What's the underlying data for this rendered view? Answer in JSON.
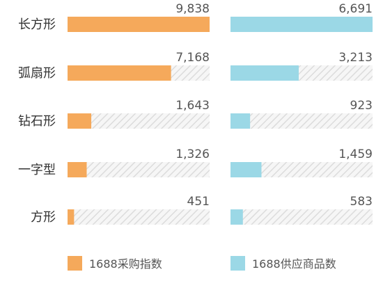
{
  "chart_data": {
    "type": "bar",
    "orientation": "horizontal",
    "layout": "two-panel",
    "categories": [
      "长方形",
      "弧扇形",
      "钻石形",
      "一字型",
      "方形"
    ],
    "series": [
      {
        "name": "1688采购指数",
        "values": [
          9838,
          7168,
          1643,
          1326,
          451
        ],
        "value_labels": [
          "9,838",
          "7,168",
          "1,643",
          "1,326",
          "451"
        ],
        "color": "#F5A95B",
        "xlim": [
          0,
          9838
        ]
      },
      {
        "name": "1688供应商品数",
        "values": [
          6691,
          3213,
          923,
          1459,
          583
        ],
        "value_labels": [
          "6,691",
          "3,213",
          "923",
          "1,459",
          "583"
        ],
        "color": "#9BD8E6",
        "xlim": [
          0,
          6691
        ]
      }
    ],
    "track_style": "diagonal-hatch",
    "track_color": "#E3E3E3",
    "legend_position": "bottom",
    "title": "",
    "xlabel": "",
    "ylabel": ""
  }
}
